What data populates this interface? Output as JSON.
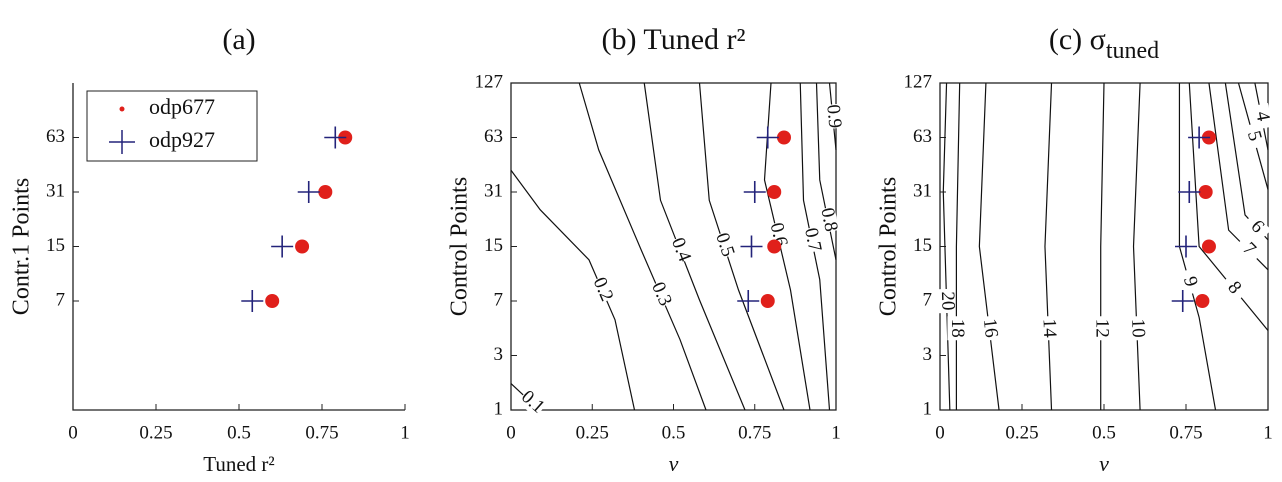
{
  "chart_data": [
    {
      "type": "scatter",
      "title": "(a)",
      "xlabel": "Tuned r²",
      "ylabel": "Contr.1 Points",
      "xlim": [
        0,
        1
      ],
      "xticks": [
        0,
        0.25,
        0.5,
        0.75,
        1
      ],
      "ylim": [
        1,
        127
      ],
      "yticks": [
        7,
        15,
        31,
        63
      ],
      "yscale": "log2(n+1)",
      "box": false,
      "legend": "upper left",
      "series": [
        {
          "name": "odp677",
          "color": "#e0201b",
          "marker": "dot",
          "x": [
            0.82,
            0.76,
            0.69,
            0.6
          ],
          "y": [
            63,
            31,
            15,
            7
          ]
        },
        {
          "name": "odp927",
          "color": "#23237a",
          "marker": "plus",
          "x": [
            0.79,
            0.71,
            0.63,
            0.54
          ],
          "y": [
            63,
            31,
            15,
            7
          ]
        }
      ]
    },
    {
      "type": "contour",
      "title": "(b) Tuned r²",
      "xlabel": "ν",
      "ylabel": "Control Points",
      "xlim": [
        0,
        1
      ],
      "xticks": [
        0,
        0.25,
        0.5,
        0.75,
        1
      ],
      "ylim": [
        1,
        127
      ],
      "yticks": [
        1,
        3,
        7,
        15,
        31,
        63,
        127
      ],
      "yscale": "log2(n+1)",
      "box": true,
      "contours": [
        {
          "name": "0.1",
          "x": [
            0,
            0.04,
            0.09
          ],
          "y": [
            1.8,
            1.4,
            1
          ]
        },
        {
          "name": "0.2",
          "x": [
            0,
            0.09,
            0.24,
            0.32,
            0.38
          ],
          "y": [
            41.2,
            24.5,
            12.5,
            5.3,
            1
          ]
        },
        {
          "name": "0.3",
          "x": [
            0.21,
            0.27,
            0.4,
            0.52,
            0.6
          ],
          "y": [
            127,
            53.6,
            14.4,
            3.9,
            1
          ]
        },
        {
          "name": "0.4",
          "x": [
            0.41,
            0.46,
            0.58,
            0.72
          ],
          "y": [
            127,
            27.8,
            7.1,
            1
          ]
        },
        {
          "name": "0.5",
          "x": [
            0.58,
            0.61,
            0.7,
            0.84
          ],
          "y": [
            127,
            27.8,
            8.2,
            1
          ]
        },
        {
          "name": "0.6",
          "x": [
            0.8,
            0.78,
            0.86,
            0.92
          ],
          "y": [
            127,
            36.3,
            8.2,
            1
          ]
        },
        {
          "name": "0.7",
          "x": [
            0.89,
            0.9,
            0.95,
            0.98
          ],
          "y": [
            127,
            27.8,
            9.5,
            1
          ]
        },
        {
          "name": "0.8",
          "x": [
            0.94,
            0.95,
            1
          ],
          "y": [
            127,
            36.3,
            12.5
          ]
        },
        {
          "name": "0.9",
          "x": [
            0.98,
            1
          ],
          "y": [
            127,
            53.6
          ]
        }
      ],
      "series": [
        {
          "color": "#e0201b",
          "marker": "dot",
          "x": [
            0.84,
            0.81,
            0.81,
            0.79
          ],
          "y": [
            63,
            31,
            15,
            7
          ]
        },
        {
          "color": "#23237a",
          "marker": "plus",
          "x": [
            0.79,
            0.75,
            0.74,
            0.73
          ],
          "y": [
            63,
            31,
            15,
            7
          ]
        }
      ]
    },
    {
      "type": "contour",
      "title": "(c) σ",
      "title_subscript": "tuned",
      "xlabel": "ν",
      "ylabel": "Control Points",
      "xlim": [
        0,
        1
      ],
      "xticks": [
        0,
        0.25,
        0.5,
        0.75,
        1
      ],
      "ylim": [
        1,
        127
      ],
      "yticks": [
        1,
        3,
        7,
        15,
        31,
        63,
        127
      ],
      "yscale": "log2(n+1)",
      "box": true,
      "contours": [
        {
          "name": "20",
          "x": [
            0.02,
            0.01,
            0.03
          ],
          "y": [
            127,
            31,
            1
          ]
        },
        {
          "name": "18",
          "x": [
            0.06,
            0.05,
            0.05
          ],
          "y": [
            127,
            15,
            1
          ]
        },
        {
          "name": "16",
          "x": [
            0.14,
            0.12,
            0.18
          ],
          "y": [
            127,
            15,
            1
          ]
        },
        {
          "name": "14",
          "x": [
            0.34,
            0.32,
            0.34
          ],
          "y": [
            127,
            15,
            1
          ]
        },
        {
          "name": "12",
          "x": [
            0.5,
            0.49,
            0.49
          ],
          "y": [
            127,
            15,
            1
          ]
        },
        {
          "name": "10",
          "x": [
            0.61,
            0.59,
            0.61
          ],
          "y": [
            127,
            15,
            1
          ]
        },
        {
          "name": "9",
          "x": [
            0.73,
            0.73,
            0.79,
            0.84
          ],
          "y": [
            127,
            15,
            5.5,
            1
          ]
        },
        {
          "name": "8",
          "x": [
            0.76,
            0.79,
            1
          ],
          "y": [
            127,
            15,
            4.5
          ]
        },
        {
          "name": "7",
          "x": [
            0.82,
            0.88,
            1
          ],
          "y": [
            127,
            18.7,
            10.9
          ]
        },
        {
          "name": "6",
          "x": [
            0.87,
            0.93,
            1
          ],
          "y": [
            127,
            22.9,
            16.4
          ]
        },
        {
          "name": "5",
          "x": [
            0.91,
            1
          ],
          "y": [
            127,
            32
          ]
        },
        {
          "name": "4",
          "x": [
            0.96,
            1
          ],
          "y": [
            127,
            53.6
          ]
        }
      ],
      "series": [
        {
          "color": "#e0201b",
          "marker": "dot",
          "x": [
            0.82,
            0.81,
            0.82,
            0.8
          ],
          "y": [
            63,
            31,
            15,
            7
          ]
        },
        {
          "color": "#23237a",
          "marker": "plus",
          "x": [
            0.79,
            0.76,
            0.75,
            0.74
          ],
          "y": [
            63,
            31,
            15,
            7
          ]
        }
      ]
    }
  ]
}
